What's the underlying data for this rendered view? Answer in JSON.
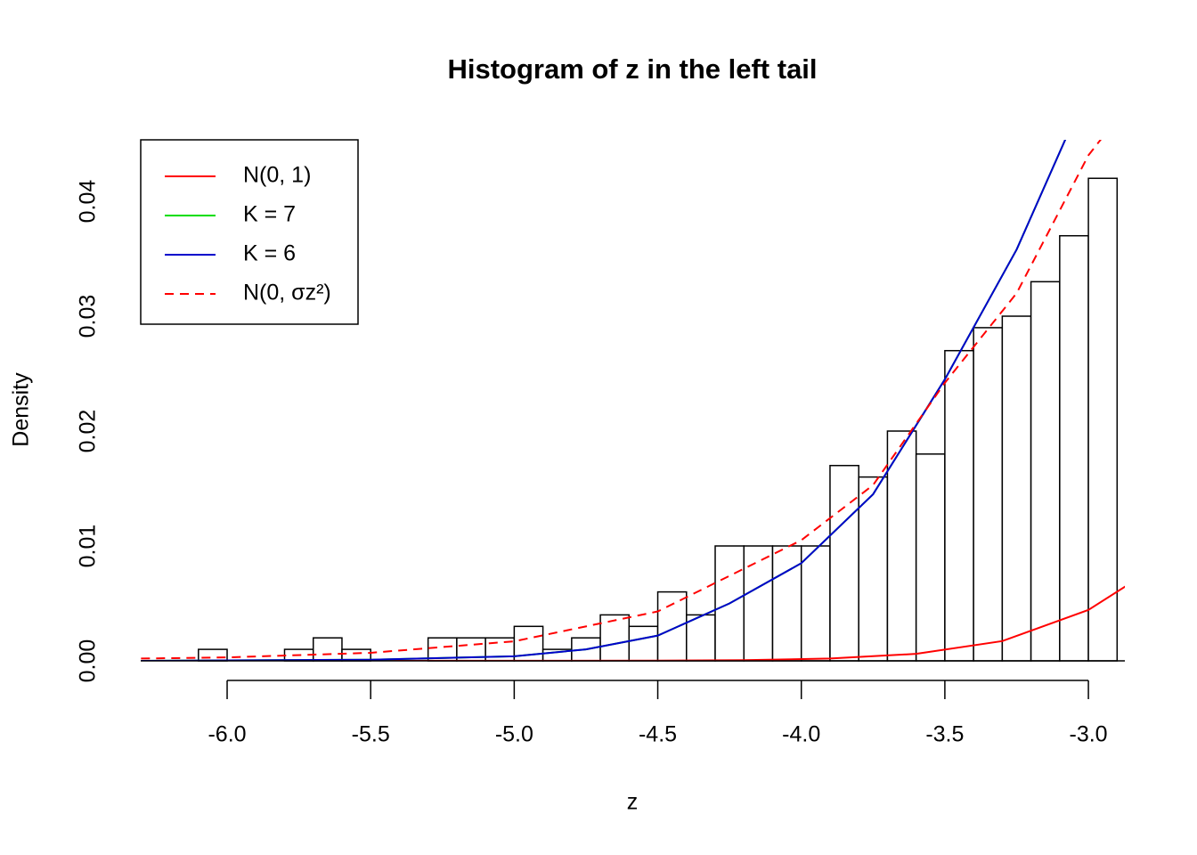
{
  "chart_data": {
    "type": "histogram",
    "title": "Histogram of z in the left tail",
    "x_label": "z",
    "y_label": "Density",
    "bins": [
      -6.3,
      -6.2,
      -6.1,
      -6.0,
      -5.9,
      -5.8,
      -5.7,
      -5.6,
      -5.5,
      -5.4,
      -5.3,
      -5.2,
      -5.1,
      -5.0,
      -4.9,
      -4.8,
      -4.7,
      -4.6,
      -4.5,
      -4.4,
      -4.3,
      -4.2,
      -4.1,
      -4.0,
      -3.9,
      -3.8,
      -3.7,
      -3.6,
      -3.5,
      -3.4,
      -3.3,
      -3.2,
      -3.1,
      -3.0,
      -2.9
    ],
    "values": [
      0,
      0,
      0.001,
      0,
      0,
      0.001,
      0.002,
      0.001,
      0,
      0,
      0.002,
      0.002,
      0.002,
      0.003,
      0.001,
      0.002,
      0.004,
      0.003,
      0.006,
      0.004,
      0.01,
      0.01,
      0.01,
      0.01,
      0.017,
      0.016,
      0.02,
      0.018,
      0.027,
      0.029,
      0.03,
      0.033,
      0.037,
      0.042
    ],
    "color": "#ffffff",
    "series": [
      {
        "name": "N(0, 1)",
        "color": "#ff0000",
        "dash": false,
        "x": [
          -6.3,
          -5.5,
          -4.5,
          -4.2,
          -3.9,
          -3.6,
          -3.3,
          -3.0,
          -2.87
        ],
        "values": [
          0,
          0,
          2e-05,
          6e-05,
          0.0002,
          0.00061,
          0.00172,
          0.00443,
          0.0065
        ]
      },
      {
        "name": "K = 7",
        "color": "#00dd00",
        "dash": false,
        "x": [
          -6.3,
          -5.5,
          -5.0,
          -4.75,
          -4.5,
          -4.25,
          -4.0,
          -3.75,
          -3.5,
          -3.25,
          -3.08
        ],
        "values": [
          0,
          0.0001,
          0.0004,
          0.001,
          0.0022,
          0.005,
          0.0085,
          0.0145,
          0.0245,
          0.0358,
          0.0454
        ]
      },
      {
        "name": "K = 6",
        "color": "#0000cc",
        "dash": false,
        "x": [
          -6.3,
          -5.5,
          -5.0,
          -4.75,
          -4.5,
          -4.25,
          -4.0,
          -3.75,
          -3.5,
          -3.25,
          -3.08
        ],
        "values": [
          0,
          0.0001,
          0.0004,
          0.001,
          0.0022,
          0.005,
          0.0085,
          0.0145,
          0.0245,
          0.0358,
          0.0454
        ]
      },
      {
        "name": "N(0, σz²)",
        "color": "#ff0000",
        "dash": true,
        "x": [
          -6.3,
          -6.0,
          -5.5,
          -5.0,
          -4.5,
          -4.0,
          -3.75,
          -3.5,
          -3.25,
          -3.0,
          -2.95
        ],
        "values": [
          0.0002,
          0.0003,
          0.0007,
          0.0017,
          0.0043,
          0.0105,
          0.0153,
          0.0242,
          0.032,
          0.044,
          0.0456
        ]
      }
    ],
    "xlim": [
      -6.301,
      -2.873
    ],
    "ylim": [
      0,
      0.04535
    ],
    "xticks": [
      {
        "value": -6,
        "label": "-6.0"
      },
      {
        "value": -5.5,
        "label": "-5.5"
      },
      {
        "value": -5,
        "label": "-5.0"
      },
      {
        "value": -4.5,
        "label": "-4.5"
      },
      {
        "value": -4,
        "label": "-4.0"
      },
      {
        "value": -3.5,
        "label": "-3.5"
      },
      {
        "value": -3,
        "label": "-3.0"
      }
    ],
    "yticks": [
      {
        "value": 0,
        "label": "0.00"
      },
      0.01,
      0.02,
      0.03,
      0.04
    ],
    "legend": "top-left"
  }
}
